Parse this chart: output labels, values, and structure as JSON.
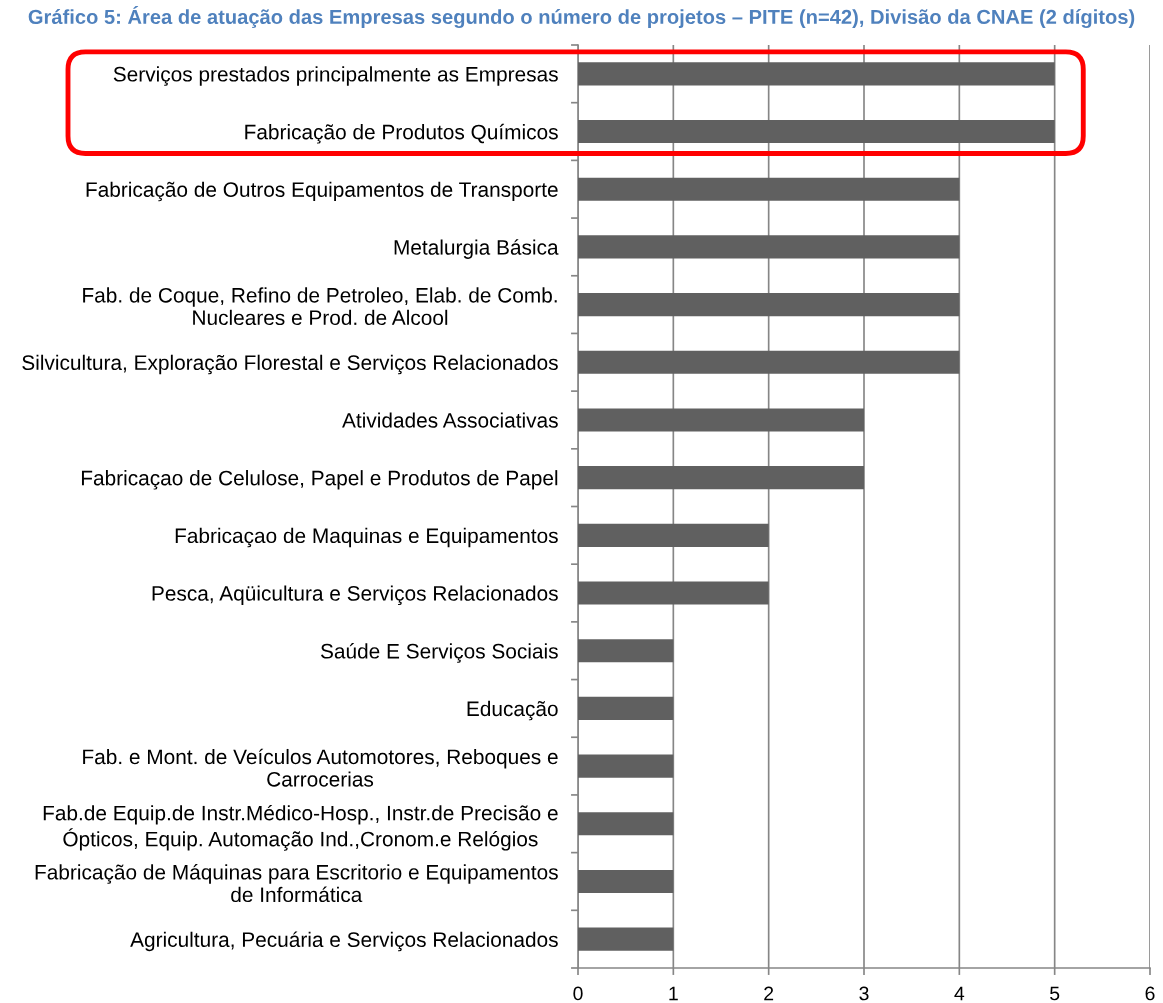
{
  "chart_data": {
    "type": "bar",
    "orientation": "horizontal",
    "title": "Gráfico 5: Área de atuação das Empresas segundo o número de projetos – PITE (n=42), Divisão da CNAE (2 dígitos)",
    "categories": [
      "Serviços prestados principalmente as Empresas",
      "Fabricação de Produtos Químicos",
      "Fabricação de Outros Equipamentos de Transporte",
      "Metalurgia Básica",
      "Fab. de Coque, Refino de Petroleo, Elab. de Comb.\nNucleares e Prod. de Alcool",
      "Silvicultura, Exploração Florestal e Serviços Relacionados",
      "Atividades Associativas",
      "Fabricaçao de Celulose, Papel e Produtos de Papel",
      "Fabricaçao de Maquinas e Equipamentos",
      "Pesca, Aqüicultura e Serviços Relacionados",
      "Saúde E Serviços Sociais",
      "Educação",
      "Fab. e Mont. de Veículos Automotores, Reboques e\nCarrocerias",
      "Fab.de Equip.de Instr.Médico-Hosp., Instr.de Precisão e\nÓpticos, Equip. Automação Ind.,Cronom.e Relógios",
      "Fabricação de Máquinas para Escritorio e Equipamentos\nde Informática",
      "Agricultura, Pecuária e Serviços Relacionados"
    ],
    "values": [
      5,
      5,
      4,
      4,
      4,
      4,
      3,
      3,
      2,
      2,
      1,
      1,
      1,
      1,
      1,
      1
    ],
    "color": "#606060",
    "xlim": [
      0,
      6
    ],
    "xticks": [
      0,
      1,
      2,
      3,
      4,
      5,
      6
    ],
    "grid": "x",
    "legend": false
  }
}
